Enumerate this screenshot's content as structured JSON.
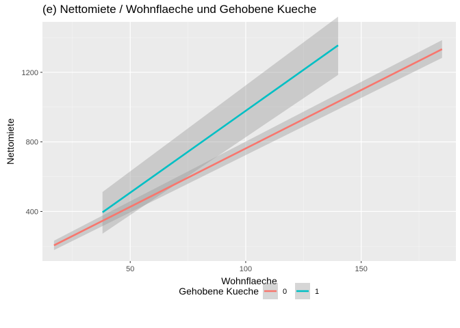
{
  "chart_data": {
    "type": "line",
    "title": "(e) Nettomiete / Wohnflaeche und Gehobene Kueche",
    "xlabel": "Wohnflaeche",
    "ylabel": "Nettomiete",
    "xlim": [
      12,
      191
    ],
    "ylim": [
      115,
      1490
    ],
    "x_ticks": [
      50,
      100,
      150
    ],
    "y_ticks": [
      400,
      800,
      1200
    ],
    "grid": true,
    "legend": {
      "title": "Gehobene Kueche",
      "position": "bottom"
    },
    "series": [
      {
        "name": "0",
        "color": "#F8766D",
        "x": [
          17,
          185
        ],
        "y": [
          205,
          1333
        ],
        "ci_lower": [
          178,
          1283
        ],
        "ci_upper": [
          232,
          1385
        ]
      },
      {
        "name": "1",
        "color": "#00BFC4",
        "x": [
          38,
          140
        ],
        "y": [
          395,
          1355
        ],
        "ci_lower": [
          272,
          1185
        ],
        "ci_upper": [
          512,
          1520
        ]
      }
    ]
  }
}
